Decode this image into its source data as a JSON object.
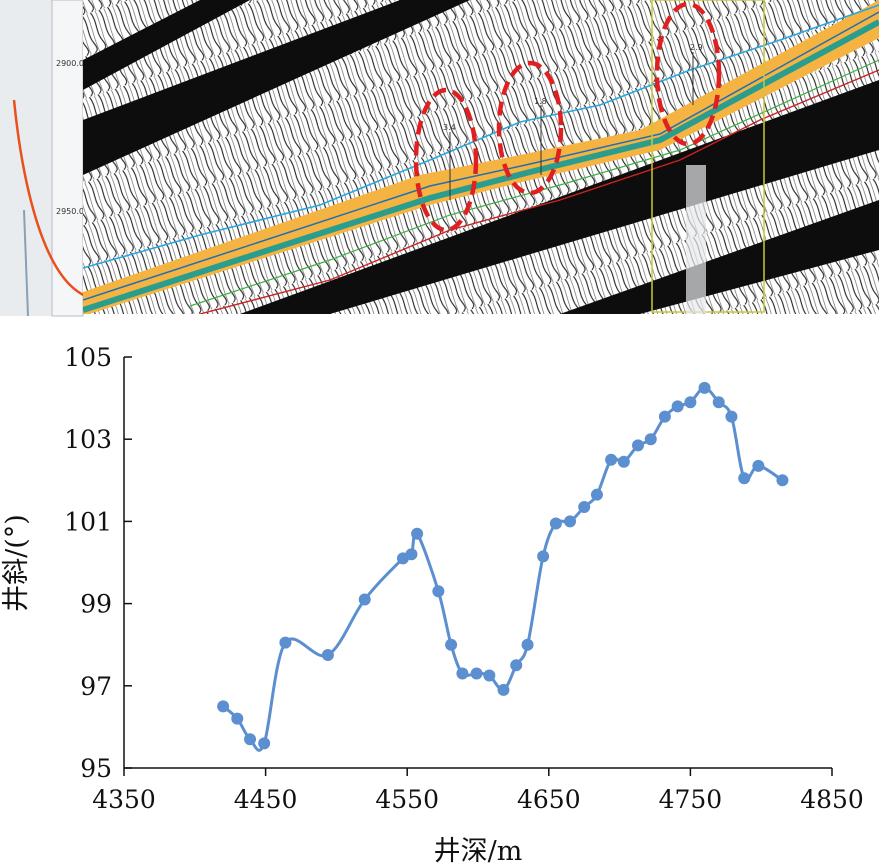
{
  "seismic_panel": {
    "depth_labels": [
      "2900.0",
      "2950.0"
    ],
    "ellipse_labels": [
      "3.4",
      "1.8",
      "2.9"
    ],
    "colors": {
      "formation_band": "#f5b342",
      "inner_band": "#2a9d8f",
      "blue_trace": "#29a8e0",
      "red_trace": "#cc2222",
      "ellipse": "#e02020",
      "gamma_curve": "#e8501e",
      "box": "#c8c83a"
    }
  },
  "chart_data": {
    "type": "line",
    "xlabel": "井深/m",
    "ylabel": "井斜/(°)",
    "xlim": [
      4350,
      4850
    ],
    "ylim": [
      95,
      105
    ],
    "xticks": [
      4350,
      4450,
      4550,
      4650,
      4750,
      4850
    ],
    "yticks": [
      95,
      97,
      99,
      101,
      103,
      105
    ],
    "grid": false,
    "legend": "none",
    "color": "#5b8fcf",
    "series": [
      {
        "x": [
          4420,
          4430,
          4439,
          4449,
          4464,
          4494,
          4520,
          4547,
          4553,
          4557,
          4572,
          4581,
          4589,
          4599,
          4608,
          4618,
          4627,
          4635,
          4646,
          4655,
          4665,
          4675,
          4684,
          4694,
          4703,
          4713,
          4722,
          4732,
          4741,
          4750,
          4760,
          4770,
          4779,
          4788,
          4798,
          4815
        ],
        "y": [
          96.5,
          96.2,
          95.7,
          95.6,
          98.05,
          97.75,
          99.1,
          100.1,
          100.2,
          100.7,
          99.3,
          98.0,
          97.3,
          97.3,
          97.25,
          96.9,
          97.5,
          98.0,
          100.15,
          100.95,
          101.0,
          101.35,
          101.65,
          102.5,
          102.45,
          102.85,
          103.0,
          103.55,
          103.8,
          103.9,
          104.25,
          103.9,
          103.55,
          102.05,
          102.35,
          102.0
        ]
      }
    ]
  }
}
